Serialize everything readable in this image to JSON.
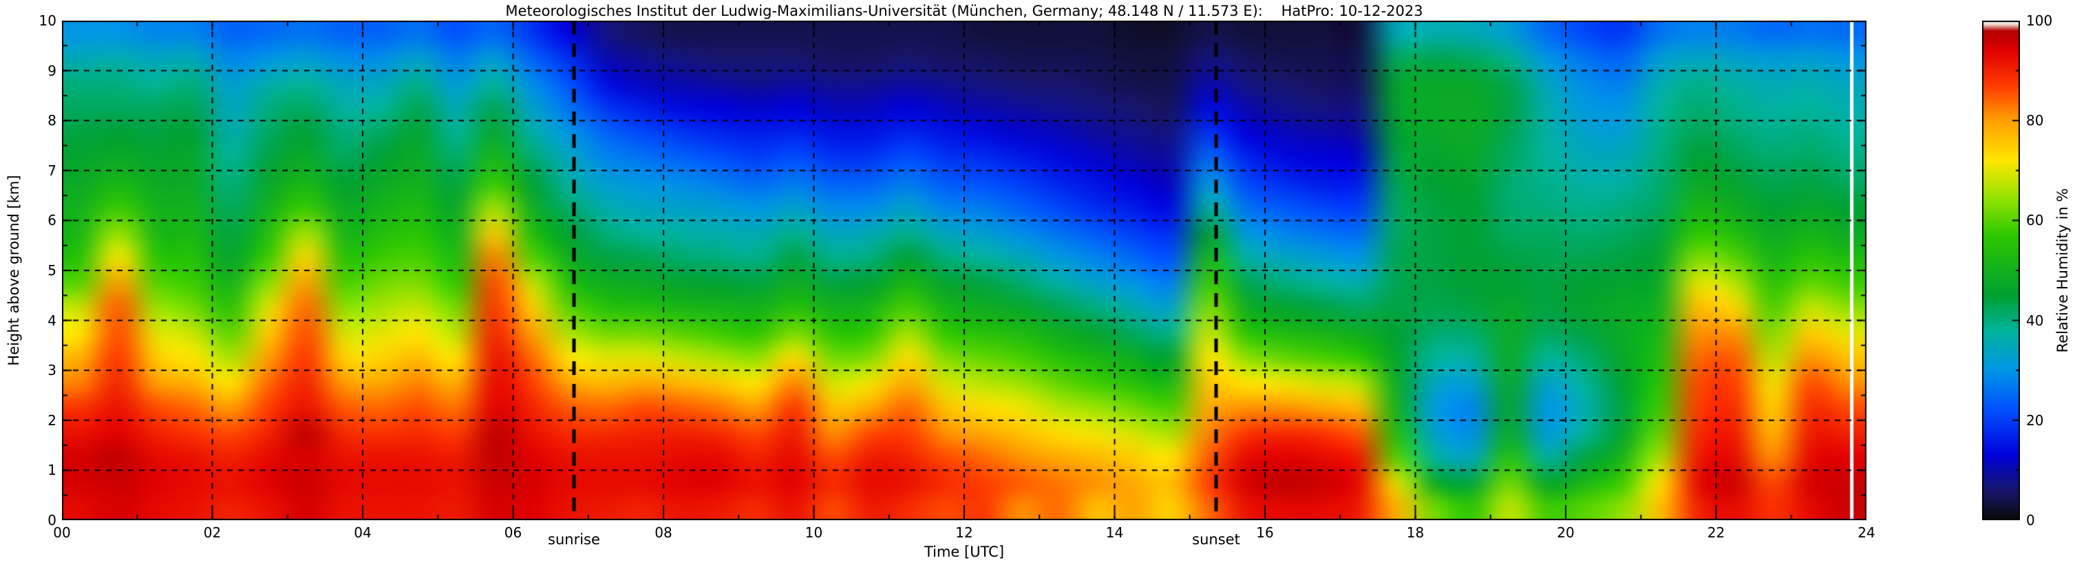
{
  "title": "Meteorologisches Institut der Ludwig-Maximilians-Universität (München, Germany; 48.148 N / 11.573 E):    HatPro: 10-12-2023",
  "axes": {
    "xlabel": "Time [UTC]",
    "ylabel": "Height above ground [km]",
    "xlim": [
      0,
      24
    ],
    "ylim": [
      0,
      10
    ],
    "x_tick_values": [
      0,
      2,
      4,
      6,
      8,
      10,
      12,
      14,
      16,
      18,
      20,
      22,
      24
    ],
    "x_tick_labels": [
      "00",
      "02",
      "04",
      "06",
      "08",
      "10",
      "12",
      "14",
      "16",
      "18",
      "20",
      "22",
      "24"
    ],
    "y_tick_values": [
      0,
      1,
      2,
      3,
      4,
      5,
      6,
      7,
      8,
      9,
      10
    ],
    "y_tick_labels": [
      "0",
      "1",
      "2",
      "3",
      "4",
      "5",
      "6",
      "7",
      "8",
      "9",
      "10"
    ],
    "grid": "dashed black at 2-hour and 1-km intervals"
  },
  "colorbar": {
    "label": "Relative Humidity in %",
    "tick_values": [
      0,
      20,
      40,
      60,
      80,
      100
    ],
    "tick_labels": [
      "0",
      "20",
      "40",
      "60",
      "80",
      "100"
    ],
    "vmin": 0,
    "vmax": 100
  },
  "annotations": {
    "sunrise": {
      "x": 6.81,
      "label": "sunrise"
    },
    "sunset": {
      "x": 15.35,
      "label": "sunset"
    }
  },
  "chart_data": {
    "type": "heatmap",
    "title": "Relative humidity time-height cross-section, HatPro microwave radiometer, 10-12-2023",
    "xlabel": "Time [UTC]",
    "ylabel": "Height above ground [km]",
    "xlim": [
      0,
      24
    ],
    "ylim": [
      0,
      10
    ],
    "vmin": 0,
    "vmax": 100,
    "x_hours": [
      0.25,
      0.75,
      1.25,
      1.75,
      2.25,
      2.75,
      3.25,
      3.75,
      4.25,
      4.75,
      5.25,
      5.75,
      6.25,
      6.75,
      7.25,
      7.75,
      8.25,
      8.75,
      9.25,
      9.75,
      10.25,
      10.75,
      11.25,
      11.75,
      12.25,
      12.75,
      13.25,
      13.75,
      14.25,
      14.75,
      15.25,
      15.75,
      16.25,
      16.75,
      17.25,
      17.75,
      18.25,
      18.75,
      19.25,
      19.75,
      20.25,
      20.75,
      21.25,
      21.75,
      22.25,
      22.75,
      23.25,
      23.75
    ],
    "y_km": [
      0.25,
      0.75,
      1.25,
      1.75,
      2.25,
      2.75,
      3.25,
      3.75,
      4.25,
      4.75,
      5.25,
      5.75,
      6.25,
      6.75,
      7.25,
      7.75,
      8.25,
      8.75,
      9.25,
      9.75
    ],
    "values_percent": [
      [
        93,
        95,
        95,
        92,
        88,
        82,
        78,
        72,
        68,
        60,
        55,
        52,
        50,
        48,
        46,
        44,
        42,
        40,
        35,
        30
      ],
      [
        95,
        96,
        97,
        94,
        92,
        90,
        88,
        86,
        85,
        80,
        72,
        65,
        58,
        52,
        48,
        45,
        42,
        40,
        36,
        30
      ],
      [
        93,
        94,
        93,
        90,
        86,
        80,
        75,
        70,
        65,
        60,
        56,
        52,
        50,
        48,
        46,
        44,
        42,
        38,
        34,
        28
      ],
      [
        92,
        93,
        92,
        88,
        84,
        78,
        72,
        68,
        62,
        58,
        55,
        52,
        50,
        48,
        47,
        45,
        43,
        40,
        35,
        28
      ],
      [
        90,
        92,
        90,
        86,
        80,
        72,
        66,
        60,
        55,
        50,
        46,
        44,
        42,
        40,
        38,
        36,
        34,
        32,
        28,
        24
      ],
      [
        92,
        94,
        93,
        90,
        87,
        84,
        80,
        75,
        70,
        64,
        58,
        54,
        50,
        47,
        44,
        42,
        40,
        36,
        30,
        25
      ],
      [
        95,
        96,
        95,
        97,
        92,
        90,
        88,
        86,
        84,
        80,
        74,
        66,
        58,
        52,
        48,
        45,
        42,
        38,
        32,
        26
      ],
      [
        92,
        93,
        92,
        89,
        85,
        80,
        74,
        69,
        64,
        59,
        55,
        51,
        48,
        45,
        42,
        40,
        37,
        34,
        29,
        24
      ],
      [
        92,
        93,
        92,
        88,
        84,
        79,
        74,
        70,
        66,
        62,
        58,
        54,
        51,
        48,
        45,
        42,
        38,
        34,
        29,
        24
      ],
      [
        92,
        93,
        92,
        89,
        86,
        82,
        77,
        72,
        68,
        63,
        59,
        56,
        53,
        50,
        48,
        46,
        43,
        39,
        33,
        26
      ],
      [
        91,
        92,
        91,
        87,
        83,
        78,
        72,
        67,
        62,
        57,
        53,
        50,
        47,
        44,
        41,
        38,
        35,
        31,
        27,
        22
      ],
      [
        95,
        96,
        97,
        97,
        94,
        93,
        92,
        90,
        88,
        86,
        82,
        75,
        66,
        58,
        52,
        47,
        43,
        38,
        32,
        25
      ],
      [
        94,
        95,
        94,
        92,
        90,
        87,
        84,
        80,
        75,
        68,
        60,
        54,
        49,
        45,
        41,
        37,
        33,
        29,
        24,
        19
      ],
      [
        92,
        93,
        92,
        89,
        85,
        79,
        72,
        66,
        60,
        54,
        49,
        45,
        41,
        37,
        34,
        30,
        26,
        22,
        18,
        13
      ],
      [
        91,
        93,
        92,
        89,
        84,
        77,
        70,
        62,
        55,
        49,
        44,
        40,
        36,
        32,
        28,
        24,
        19,
        14,
        10,
        7
      ],
      [
        90,
        93,
        92,
        90,
        86,
        79,
        70,
        62,
        54,
        48,
        43,
        38,
        34,
        30,
        26,
        21,
        16,
        11,
        8,
        5
      ],
      [
        92,
        94,
        93,
        90,
        85,
        77,
        68,
        60,
        52,
        46,
        41,
        37,
        33,
        29,
        24,
        19,
        14,
        10,
        7,
        4
      ],
      [
        91,
        94,
        93,
        89,
        83,
        75,
        66,
        58,
        51,
        45,
        40,
        36,
        32,
        27,
        22,
        17,
        13,
        9,
        6,
        4
      ],
      [
        89,
        92,
        90,
        86,
        80,
        72,
        64,
        56,
        50,
        44,
        39,
        35,
        30,
        25,
        20,
        16,
        12,
        8,
        6,
        4
      ],
      [
        92,
        94,
        93,
        91,
        88,
        82,
        73,
        63,
        55,
        49,
        44,
        39,
        33,
        27,
        22,
        17,
        13,
        9,
        6,
        4
      ],
      [
        86,
        89,
        86,
        81,
        76,
        69,
        62,
        56,
        50,
        44,
        39,
        34,
        29,
        24,
        19,
        15,
        11,
        8,
        5,
        4
      ],
      [
        91,
        93,
        91,
        86,
        79,
        71,
        63,
        57,
        51,
        45,
        40,
        35,
        29,
        24,
        19,
        15,
        11,
        8,
        5,
        4
      ],
      [
        89,
        92,
        90,
        87,
        84,
        79,
        73,
        66,
        59,
        52,
        45,
        39,
        33,
        27,
        22,
        17,
        13,
        9,
        6,
        4
      ],
      [
        86,
        89,
        86,
        81,
        76,
        69,
        63,
        57,
        51,
        46,
        40,
        34,
        28,
        23,
        19,
        15,
        11,
        8,
        5,
        4
      ],
      [
        88,
        87,
        84,
        79,
        73,
        67,
        61,
        55,
        49,
        44,
        38,
        32,
        27,
        22,
        18,
        14,
        10,
        7,
        5,
        3
      ],
      [
        81,
        85,
        81,
        76,
        71,
        65,
        59,
        53,
        47,
        41,
        35,
        29,
        24,
        20,
        16,
        12,
        9,
        6,
        4,
        3
      ],
      [
        84,
        83,
        79,
        73,
        67,
        61,
        55,
        49,
        43,
        37,
        31,
        26,
        21,
        17,
        14,
        11,
        8,
        6,
        4,
        3
      ],
      [
        76,
        81,
        77,
        71,
        65,
        58,
        52,
        46,
        40,
        33,
        28,
        23,
        18,
        15,
        12,
        9,
        7,
        5,
        4,
        3
      ],
      [
        80,
        79,
        75,
        69,
        62,
        55,
        49,
        42,
        36,
        30,
        25,
        20,
        16,
        13,
        10,
        8,
        6,
        4,
        3,
        2
      ],
      [
        74,
        76,
        72,
        66,
        59,
        52,
        45,
        39,
        33,
        27,
        22,
        18,
        14,
        11,
        9,
        7,
        5,
        4,
        3,
        2
      ],
      [
        84,
        87,
        85,
        82,
        79,
        76,
        72,
        68,
        63,
        58,
        52,
        45,
        38,
        31,
        25,
        19,
        14,
        10,
        7,
        4
      ],
      [
        92,
        95,
        93,
        88,
        81,
        72,
        64,
        56,
        49,
        43,
        37,
        31,
        26,
        21,
        17,
        13,
        10,
        7,
        5,
        3
      ],
      [
        93,
        97,
        94,
        89,
        81,
        71,
        61,
        53,
        46,
        40,
        34,
        28,
        23,
        18,
        14,
        11,
        8,
        6,
        4,
        3
      ],
      [
        93,
        96,
        93,
        88,
        79,
        69,
        59,
        51,
        44,
        38,
        32,
        26,
        21,
        16,
        13,
        10,
        7,
        5,
        4,
        3
      ],
      [
        91,
        93,
        91,
        85,
        77,
        67,
        57,
        49,
        42,
        36,
        30,
        25,
        20,
        16,
        12,
        9,
        7,
        5,
        4,
        3
      ],
      [
        78,
        70,
        60,
        54,
        50,
        48,
        46,
        45,
        44,
        43,
        43,
        42,
        42,
        43,
        44,
        45,
        46,
        46,
        42,
        35
      ],
      [
        62,
        48,
        38,
        33,
        31,
        34,
        38,
        41,
        43,
        44,
        44,
        44,
        44,
        45,
        46,
        47,
        48,
        47,
        43,
        36
      ],
      [
        56,
        44,
        34,
        29,
        28,
        32,
        37,
        41,
        44,
        45,
        45,
        45,
        45,
        46,
        47,
        48,
        48,
        47,
        42,
        35
      ],
      [
        68,
        62,
        55,
        48,
        46,
        47,
        48,
        48,
        47,
        45,
        44,
        42,
        41,
        41,
        42,
        43,
        44,
        43,
        39,
        32
      ],
      [
        58,
        46,
        37,
        31,
        30,
        33,
        38,
        42,
        44,
        44,
        43,
        42,
        40,
        39,
        38,
        37,
        36,
        34,
        30,
        25
      ],
      [
        60,
        52,
        44,
        38,
        36,
        38,
        41,
        44,
        46,
        45,
        43,
        41,
        39,
        37,
        35,
        33,
        31,
        29,
        26,
        21
      ],
      [
        64,
        58,
        51,
        46,
        44,
        45,
        47,
        48,
        48,
        46,
        44,
        42,
        40,
        37,
        35,
        32,
        30,
        27,
        24,
        19
      ],
      [
        76,
        72,
        66,
        61,
        58,
        56,
        54,
        52,
        50,
        48,
        46,
        44,
        42,
        41,
        40,
        39,
        38,
        36,
        32,
        26
      ],
      [
        90,
        93,
        91,
        89,
        87,
        86,
        84,
        81,
        77,
        70,
        63,
        57,
        52,
        48,
        45,
        43,
        41,
        39,
        34,
        28
      ],
      [
        93,
        96,
        93,
        91,
        89,
        87,
        85,
        81,
        74,
        67,
        60,
        54,
        49,
        46,
        43,
        41,
        39,
        37,
        33,
        27
      ],
      [
        88,
        86,
        81,
        77,
        74,
        71,
        67,
        63,
        59,
        55,
        51,
        48,
        45,
        43,
        41,
        39,
        37,
        35,
        31,
        25
      ],
      [
        93,
        95,
        93,
        91,
        89,
        86,
        81,
        75,
        68,
        61,
        56,
        51,
        47,
        44,
        42,
        40,
        38,
        36,
        32,
        26
      ],
      [
        96,
        96,
        94,
        90,
        86,
        81,
        76,
        70,
        64,
        58,
        53,
        48,
        45,
        42,
        40,
        38,
        36,
        34,
        30,
        25
      ]
    ],
    "saturation_stripe_hours": [
      23.8
    ],
    "colormap_stops": [
      [
        0,
        "#0a0a0a"
      ],
      [
        6,
        "#16166e"
      ],
      [
        13,
        "#0000dc"
      ],
      [
        22,
        "#0050ff"
      ],
      [
        30,
        "#0096e6"
      ],
      [
        38,
        "#00b49b"
      ],
      [
        45,
        "#00a032"
      ],
      [
        57,
        "#2dc800"
      ],
      [
        65,
        "#9be400"
      ],
      [
        72,
        "#ffe600"
      ],
      [
        80,
        "#ffa000"
      ],
      [
        87,
        "#ff3c00"
      ],
      [
        94,
        "#e10000"
      ],
      [
        98,
        "#b40000"
      ],
      [
        99.3,
        "#f0d8c8"
      ],
      [
        100,
        "#ffffff"
      ]
    ],
    "legend_position": "right-colorbar",
    "grid": true
  }
}
